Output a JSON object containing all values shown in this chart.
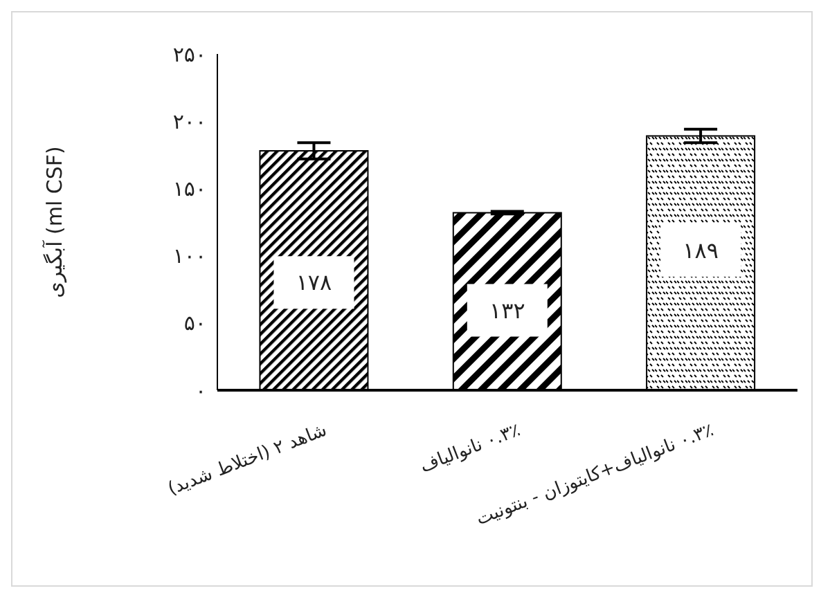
{
  "chart_data": {
    "type": "bar",
    "ylabel": "آبگیری (ml CSF)",
    "categories": [
      "شاهد ۲ (اختلاط شدید)",
      "۰.۳٪ نانوالیاف",
      "۰.۳٪ نانوالیاف+کایتوزان - بنتونیت"
    ],
    "values": [
      178,
      132,
      189
    ],
    "colors": [
      "#000000",
      "#000000",
      "#000000"
    ],
    "errors": [
      6,
      1,
      5
    ],
    "value_labels": [
      "۱۷۸",
      "۱۳۲",
      "۱۸۹"
    ],
    "ylim": [
      0,
      250
    ],
    "yticks": [
      {
        "value": 0,
        "label": "۰"
      },
      {
        "value": 50,
        "label": "۵۰"
      },
      {
        "value": 100,
        "label": "۱۰۰"
      },
      {
        "value": 150,
        "label": "۱۵۰"
      },
      {
        "value": 200,
        "label": "۲۰۰"
      },
      {
        "value": 250,
        "label": "۲۵۰"
      }
    ],
    "grid": false,
    "legend": false
  }
}
